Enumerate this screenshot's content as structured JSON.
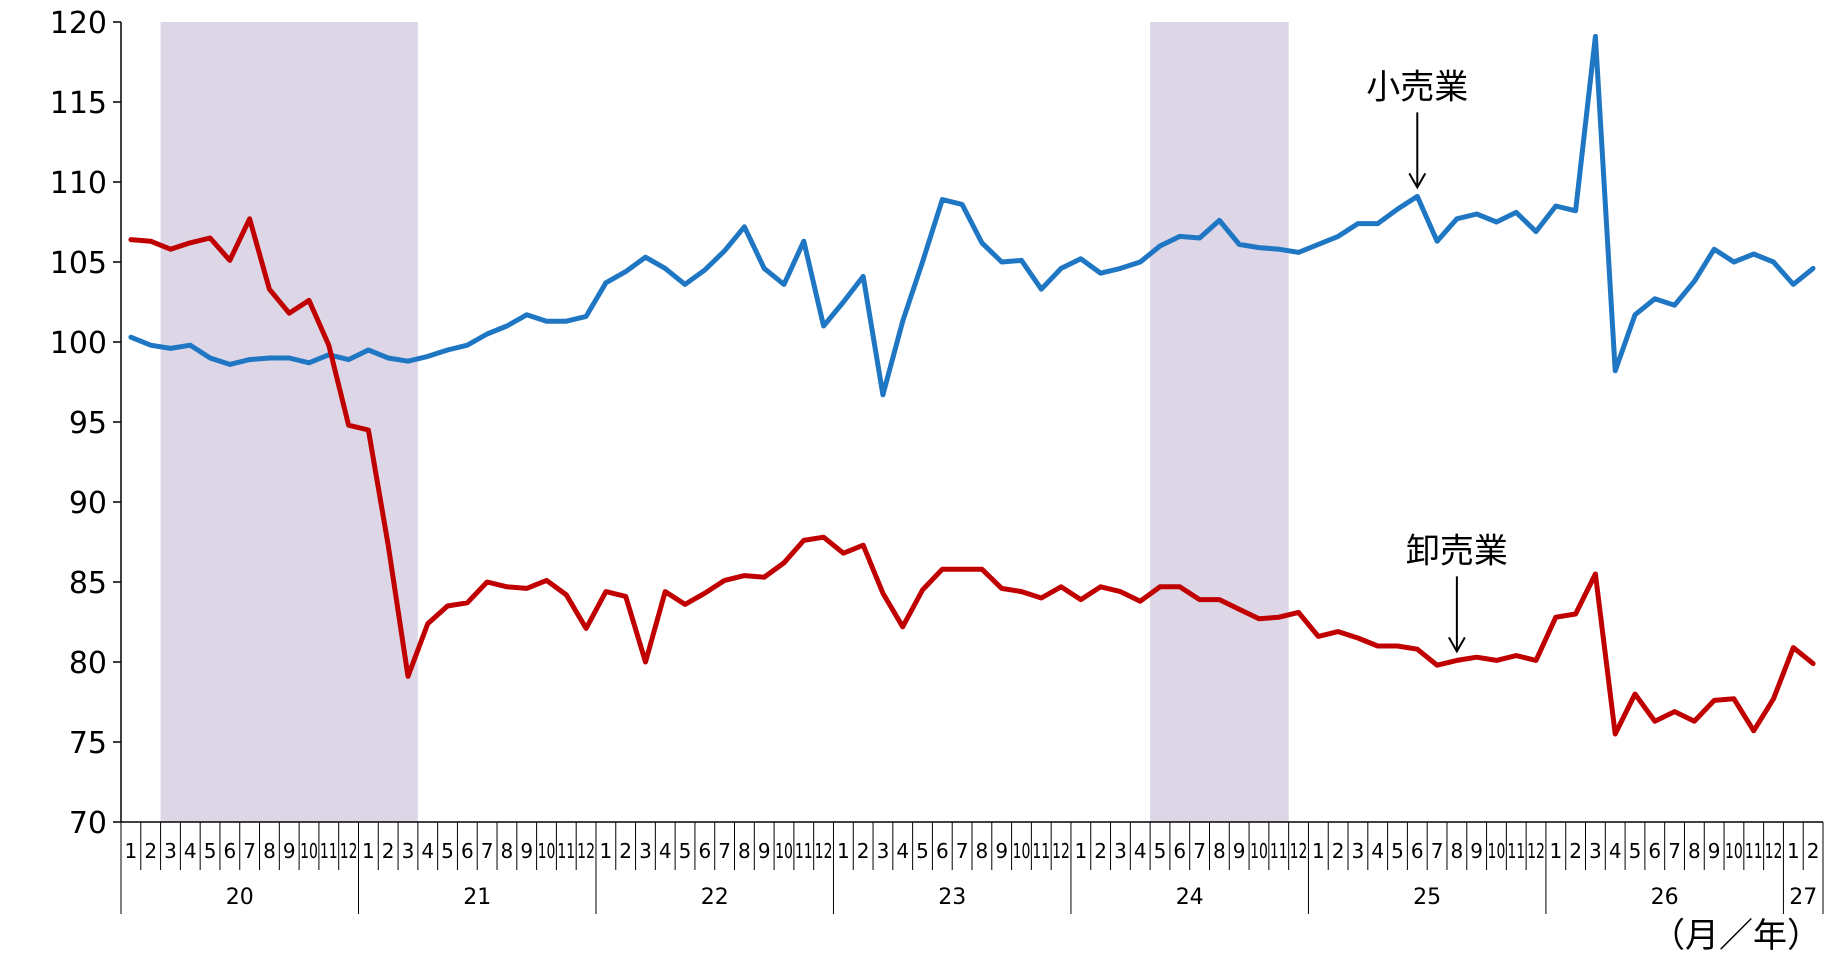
{
  "chart_data": {
    "type": "line",
    "y_ticks": [
      70,
      75,
      80,
      85,
      90,
      95,
      100,
      105,
      110,
      115,
      120
    ],
    "ylim": [
      70,
      120
    ],
    "month_labels": [
      "1",
      "2",
      "3",
      "4",
      "5",
      "6",
      "7",
      "8",
      "9",
      "10",
      "11",
      "12",
      "1",
      "2",
      "3",
      "4",
      "5",
      "6",
      "7",
      "8",
      "9",
      "10",
      "11",
      "12",
      "1",
      "2",
      "3",
      "4",
      "5",
      "6",
      "7",
      "8",
      "9",
      "10",
      "11",
      "12",
      "1",
      "2",
      "3",
      "4",
      "5",
      "6",
      "7",
      "8",
      "9",
      "10",
      "11",
      "12",
      "1",
      "2",
      "3",
      "4",
      "5",
      "6",
      "7",
      "8",
      "9",
      "10",
      "11",
      "12",
      "1",
      "2",
      "3",
      "4",
      "5",
      "6",
      "7",
      "8",
      "9",
      "10",
      "11",
      "12",
      "1",
      "2",
      "3",
      "4",
      "5",
      "6",
      "7",
      "8",
      "9",
      "10",
      "11",
      "12",
      "1",
      "2"
    ],
    "years": [
      {
        "label": "20",
        "months": 12
      },
      {
        "label": "21",
        "months": 12
      },
      {
        "label": "22",
        "months": 12
      },
      {
        "label": "23",
        "months": 12
      },
      {
        "label": "24",
        "months": 12
      },
      {
        "label": "25",
        "months": 12
      },
      {
        "label": "26",
        "months": 12
      },
      {
        "label": "27",
        "months": 2
      }
    ],
    "shaded_ranges": [
      {
        "from": "20-3",
        "to": "21-3"
      },
      {
        "from": "24-5",
        "to": "24-11"
      }
    ],
    "series": [
      {
        "name": "小売業",
        "color": "#1f77c4",
        "values": [
          100.3,
          99.8,
          99.6,
          99.8,
          99.0,
          98.6,
          98.9,
          99.0,
          99.0,
          98.7,
          99.2,
          98.9,
          99.5,
          99.0,
          98.8,
          99.1,
          99.5,
          99.8,
          100.5,
          101.0,
          101.7,
          101.3,
          101.3,
          101.6,
          103.7,
          104.4,
          105.3,
          104.6,
          103.6,
          104.5,
          105.7,
          107.2,
          104.6,
          103.6,
          106.3,
          101.0,
          102.5,
          104.1,
          96.7,
          101.3,
          105.0,
          108.9,
          108.6,
          106.2,
          105.0,
          105.1,
          103.3,
          104.6,
          105.2,
          104.3,
          104.6,
          105.0,
          106.0,
          106.6,
          106.5,
          107.6,
          106.1,
          105.9,
          105.8,
          105.6,
          106.1,
          106.6,
          107.4,
          107.4,
          108.3,
          109.1,
          106.3,
          107.7,
          108.0,
          107.5,
          108.1,
          106.9,
          108.5,
          108.2,
          119.1,
          98.2,
          101.7,
          102.7,
          102.3,
          103.8,
          105.8,
          105.0,
          105.5,
          105.0,
          103.6,
          104.6
        ]
      },
      {
        "name": "卸売業",
        "color": "#c00000",
        "values": [
          106.4,
          106.3,
          105.8,
          106.2,
          106.5,
          105.1,
          107.7,
          103.3,
          101.8,
          102.6,
          99.8,
          94.8,
          94.5,
          87.3,
          79.1,
          82.4,
          83.5,
          83.7,
          85.0,
          84.7,
          84.6,
          85.1,
          84.2,
          82.1,
          84.4,
          84.1,
          80.0,
          84.4,
          83.6,
          84.3,
          85.1,
          85.4,
          85.3,
          86.2,
          87.6,
          87.8,
          86.8,
          87.3,
          84.3,
          82.2,
          84.5,
          85.8,
          85.8,
          85.8,
          84.6,
          84.4,
          84.0,
          84.7,
          83.9,
          84.7,
          84.4,
          83.8,
          84.7,
          84.7,
          83.9,
          83.9,
          83.3,
          82.7,
          82.8,
          83.1,
          81.6,
          81.9,
          81.5,
          81.0,
          81.0,
          80.8,
          79.8,
          80.1,
          80.3,
          80.1,
          80.4,
          80.1,
          82.8,
          83.0,
          85.5,
          75.5,
          78.0,
          76.3,
          76.9,
          76.3,
          77.6,
          77.7,
          75.7,
          77.7,
          80.9,
          79.9
        ]
      }
    ],
    "annotations": [
      {
        "text": "小売業",
        "series": "小売業",
        "month_index": 65
      },
      {
        "text": "卸売業",
        "series": "卸売業",
        "month_index": 67
      }
    ],
    "unit_label": "（月／年）"
  }
}
